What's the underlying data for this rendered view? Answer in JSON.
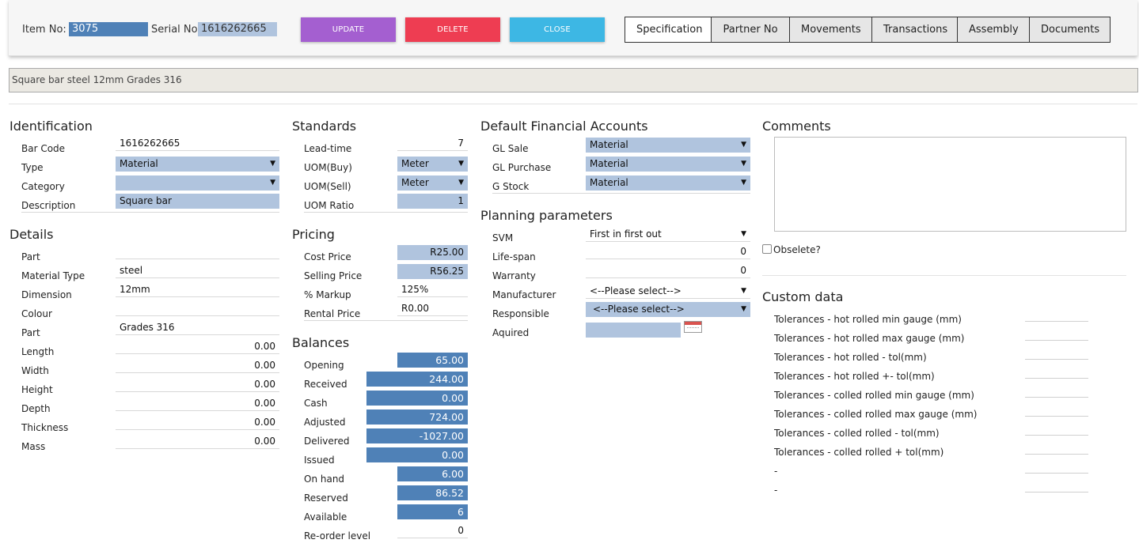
{
  "header": {
    "item_no_label": "Item No:",
    "item_no": "3075",
    "serial_no_label": "Serial No",
    "serial_no": "1616262665",
    "buttons": {
      "update": "UPDATE",
      "delete": "DELETE",
      "close": "CLOSE"
    },
    "tabs": [
      "Specification",
      "Partner No",
      "Movements",
      "Transactions",
      "Assembly",
      "Documents"
    ]
  },
  "description_bar": "Square bar  steel 12mm  Grades 316",
  "identification": {
    "heading": "Identification",
    "bar_code_label": "Bar Code",
    "bar_code": "1616262665",
    "type_label": "Type",
    "type": "Material",
    "category_label": "Category",
    "category": "",
    "description_label": "Description",
    "description": "Square bar"
  },
  "details": {
    "heading": "Details",
    "rows": [
      {
        "label": "Part",
        "value": ""
      },
      {
        "label": "Material Type",
        "value": "steel"
      },
      {
        "label": "Dimension",
        "value": "12mm"
      },
      {
        "label": "Colour",
        "value": ""
      },
      {
        "label": "Part",
        "value": "Grades 316"
      },
      {
        "label": "Length",
        "value": "0.00"
      },
      {
        "label": "Width",
        "value": "0.00"
      },
      {
        "label": "Height",
        "value": "0.00"
      },
      {
        "label": "Depth",
        "value": "0.00"
      },
      {
        "label": "Thickness",
        "value": "0.00"
      },
      {
        "label": "Mass",
        "value": "0.00"
      }
    ]
  },
  "standards": {
    "heading": "Standards",
    "lead_time_label": "Lead-time",
    "lead_time": "7",
    "uom_buy_label": "UOM(Buy)",
    "uom_buy": "Meter",
    "uom_sell_label": "UOM(Sell)",
    "uom_sell": "Meter",
    "uom_ratio_label": "UOM Ratio",
    "uom_ratio": "1"
  },
  "pricing": {
    "heading": "Pricing",
    "cost_price_label": "Cost Price",
    "cost_price": "R25.00",
    "selling_price_label": "Selling Price",
    "selling_price": "R56.25",
    "markup_label": "% Markup",
    "markup": "125%",
    "rental_price_label": "Rental Price",
    "rental_price": "R0.00"
  },
  "balances": {
    "heading": "Balances",
    "rows": [
      {
        "label": "Opening",
        "value": "65.00"
      },
      {
        "label": "Received",
        "value": "244.00"
      },
      {
        "label": "Cash",
        "value": "0.00"
      },
      {
        "label": "Adjusted",
        "value": "724.00"
      },
      {
        "label": "Delivered",
        "value": "-1027.00"
      },
      {
        "label": "Issued",
        "value": "0.00"
      },
      {
        "label": "On hand",
        "value": "6.00"
      },
      {
        "label": "Reserved",
        "value": "86.52"
      },
      {
        "label": "Available",
        "value": "6"
      },
      {
        "label": "Re-order level",
        "value": "0"
      }
    ]
  },
  "financial": {
    "heading": "Default Financial Accounts",
    "gl_sale_label": "GL Sale",
    "gl_sale": "Material",
    "gl_purchase_label": "GL Purchase",
    "gl_purchase": "Material",
    "g_stock_label": "G Stock",
    "g_stock": "Material"
  },
  "planning": {
    "heading": "Planning parameters",
    "svm_label": "SVM",
    "svm": "First in first out",
    "life_span_label": "Life-span",
    "life_span": "0",
    "warranty_label": "Warranty",
    "warranty": "0",
    "manufacturer_label": "Manufacturer",
    "manufacturer": "<--Please select-->",
    "responsible_label": "Responsible",
    "responsible": "<--Please select-->",
    "aquired_label": "Aquired",
    "aquired": ""
  },
  "comments": {
    "heading": "Comments",
    "text": "",
    "obsolete_label": "Obselete?"
  },
  "custom_data": {
    "heading": "Custom data",
    "rows": [
      "Tolerances - hot rolled min gauge (mm)",
      "Tolerances - hot rolled max gauge (mm)",
      "Tolerances - hot rolled - tol(mm)",
      "Tolerances - hot rolled +- tol(mm)",
      "Tolerances - colled rolled min gauge (mm)",
      "Tolerances - colled rolled max gauge (mm)",
      "Tolerances - colled rolled - tol(mm)",
      "Tolerances - colled rolled + tol(mm)",
      "-",
      "-"
    ]
  }
}
